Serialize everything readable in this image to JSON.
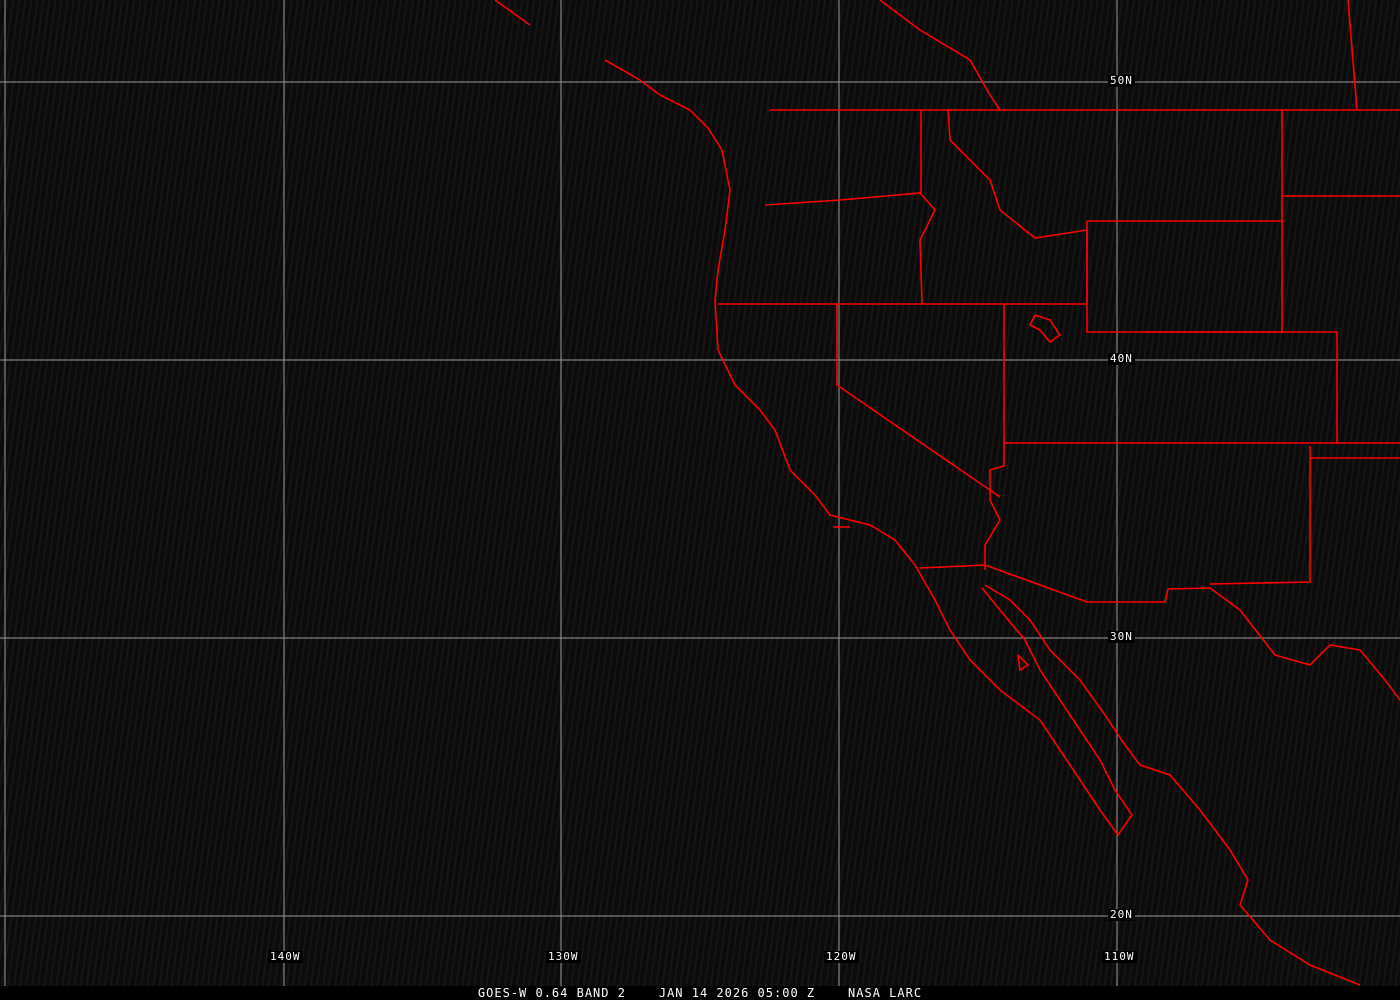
{
  "colors": {
    "background": "#0b0b0b",
    "grid": "#9a9a9a",
    "boundaries": "#ff0000",
    "text": "#ffffff"
  },
  "latitude_labels": [
    "50N",
    "40N",
    "30N",
    "20N"
  ],
  "longitude_labels": [
    "140W",
    "130W",
    "120W",
    "110W"
  ],
  "caption": {
    "satellite": "GOES-W 0.64 BAND 2",
    "datetime": "JAN 14 2026 05:00 Z",
    "source": "NASA LARC"
  }
}
